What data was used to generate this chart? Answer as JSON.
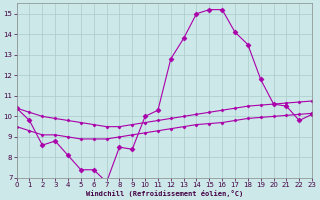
{
  "xlabel": "Windchill (Refroidissement éolien,°C)",
  "background_color": "#cce8e8",
  "grid_color": "#aacccc",
  "line_color": "#aa00aa",
  "xmin": 0,
  "xmax": 23,
  "ymin": 7,
  "ymax": 15.5,
  "yticks": [
    7,
    8,
    9,
    10,
    11,
    12,
    13,
    14,
    15
  ],
  "xticks": [
    0,
    1,
    2,
    3,
    4,
    5,
    6,
    7,
    8,
    9,
    10,
    11,
    12,
    13,
    14,
    15,
    16,
    17,
    18,
    19,
    20,
    21,
    22,
    23
  ],
  "line1_x": [
    0,
    1,
    2,
    3,
    4,
    5,
    6,
    7,
    8,
    9,
    10,
    11,
    12,
    13,
    14,
    15,
    16,
    17,
    18,
    19,
    20,
    21,
    22,
    23
  ],
  "line1_y": [
    10.4,
    9.8,
    8.6,
    8.8,
    8.1,
    7.4,
    7.4,
    6.8,
    8.5,
    8.4,
    10.0,
    10.3,
    12.8,
    13.8,
    15.0,
    15.2,
    15.2,
    14.1,
    13.5,
    11.8,
    10.6,
    10.5,
    9.8,
    10.1
  ],
  "line2_x": [
    0,
    1,
    2,
    3,
    4,
    5,
    6,
    7,
    8,
    9,
    10,
    11,
    12,
    13,
    14,
    15,
    16,
    17,
    18,
    19,
    20,
    21,
    22,
    23
  ],
  "line2_y": [
    10.4,
    10.2,
    10.0,
    9.9,
    9.8,
    9.7,
    9.6,
    9.5,
    9.5,
    9.6,
    9.7,
    9.8,
    9.9,
    10.0,
    10.1,
    10.2,
    10.3,
    10.4,
    10.5,
    10.55,
    10.6,
    10.65,
    10.7,
    10.75
  ],
  "line3_x": [
    0,
    1,
    2,
    3,
    4,
    5,
    6,
    7,
    8,
    9,
    10,
    11,
    12,
    13,
    14,
    15,
    16,
    17,
    18,
    19,
    20,
    21,
    22,
    23
  ],
  "line3_y": [
    9.5,
    9.3,
    9.1,
    9.1,
    9.0,
    8.9,
    8.9,
    8.9,
    9.0,
    9.1,
    9.2,
    9.3,
    9.4,
    9.5,
    9.6,
    9.65,
    9.7,
    9.8,
    9.9,
    9.95,
    10.0,
    10.05,
    10.1,
    10.15
  ]
}
